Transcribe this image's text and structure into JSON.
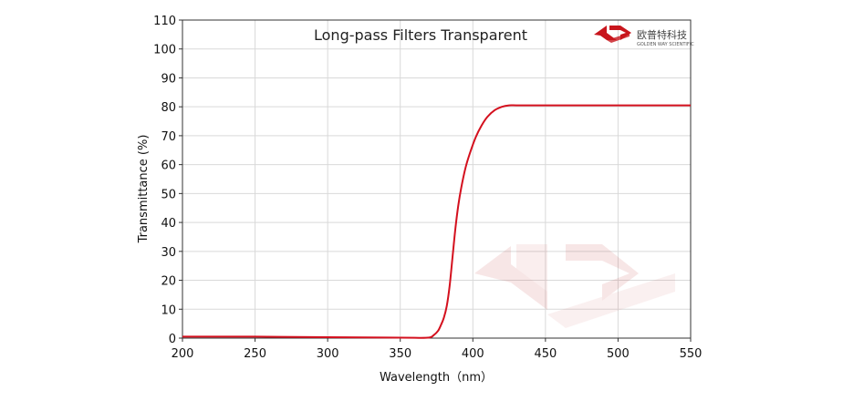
{
  "logo": {
    "name_cn": "欧普特科技",
    "name_en": "GOLDEN WAY SCIENTIFIC"
  },
  "colors": {
    "series": "#d4101e",
    "grid": "#d9d9d9",
    "axis": "#333333",
    "watermark": "#c43a3a"
  },
  "chart_data": {
    "type": "line",
    "title": "Long-pass  Filters  Transparent",
    "xlabel": "Wavelength（nm）",
    "ylabel": "Transmittance  (%)",
    "xlim": [
      200,
      550
    ],
    "ylim": [
      0,
      110
    ],
    "xticks": [
      200,
      250,
      300,
      350,
      400,
      450,
      500,
      550
    ],
    "yticks": [
      0,
      10,
      20,
      30,
      40,
      50,
      60,
      70,
      80,
      90,
      100,
      110
    ],
    "grid": true,
    "legend": "none",
    "series": [
      {
        "x": [
          200,
          250,
          300,
          340,
          360,
          370,
          373,
          376,
          378,
          380,
          382,
          384,
          386,
          388,
          390,
          392,
          395,
          398,
          402,
          406,
          410,
          415,
          420,
          425,
          430,
          440,
          460,
          500,
          550
        ],
        "y": [
          0.5,
          0.5,
          0.3,
          0.2,
          0.1,
          0.2,
          1,
          2.5,
          4.5,
          7,
          11,
          18,
          28,
          38,
          46,
          52,
          59,
          64,
          69.5,
          73.5,
          76.5,
          78.8,
          80,
          80.5,
          80.5,
          80.5,
          80.5,
          80.5,
          80.5
        ]
      }
    ]
  }
}
